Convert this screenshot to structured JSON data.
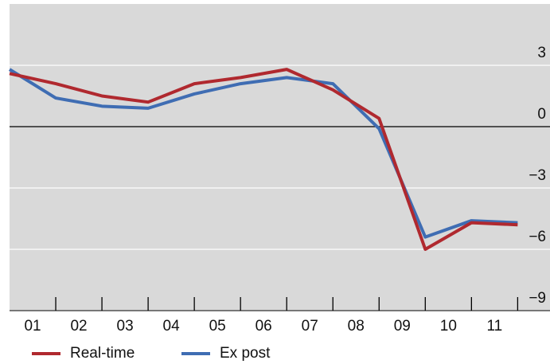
{
  "chart_data": {
    "type": "line",
    "x": [
      0,
      1,
      2,
      3,
      4,
      5,
      6,
      7,
      8,
      9,
      10,
      11
    ],
    "xlim": [
      0,
      11.7
    ],
    "xticks": [
      {
        "value": 0.5,
        "label": "01"
      },
      {
        "value": 1.5,
        "label": "02"
      },
      {
        "value": 2.5,
        "label": "03"
      },
      {
        "value": 3.5,
        "label": "04"
      },
      {
        "value": 4.5,
        "label": "05"
      },
      {
        "value": 5.5,
        "label": "06"
      },
      {
        "value": 6.5,
        "label": "07"
      },
      {
        "value": 7.5,
        "label": "08"
      },
      {
        "value": 8.5,
        "label": "09"
      },
      {
        "value": 9.5,
        "label": "10"
      },
      {
        "value": 10.5,
        "label": "11"
      }
    ],
    "ylim": [
      -9,
      6
    ],
    "yticks": [
      3,
      0,
      {
        "value": -3,
        "label": "−3"
      },
      {
        "value": -6,
        "label": "−6"
      },
      {
        "value": -9,
        "label": "−9"
      }
    ],
    "grid": true,
    "series": [
      {
        "name": "Real-time",
        "color": "#b0292f",
        "values": [
          2.6,
          2.1,
          1.5,
          1.2,
          2.1,
          2.4,
          2.8,
          1.8,
          0.4,
          -6.0,
          -4.7,
          -4.8
        ]
      },
      {
        "name": "Ex post",
        "color": "#3f6db3",
        "values": [
          2.8,
          1.4,
          1.0,
          0.9,
          1.6,
          2.1,
          2.4,
          2.1,
          -0.1,
          -5.4,
          -4.6,
          -4.7
        ]
      }
    ]
  }
}
